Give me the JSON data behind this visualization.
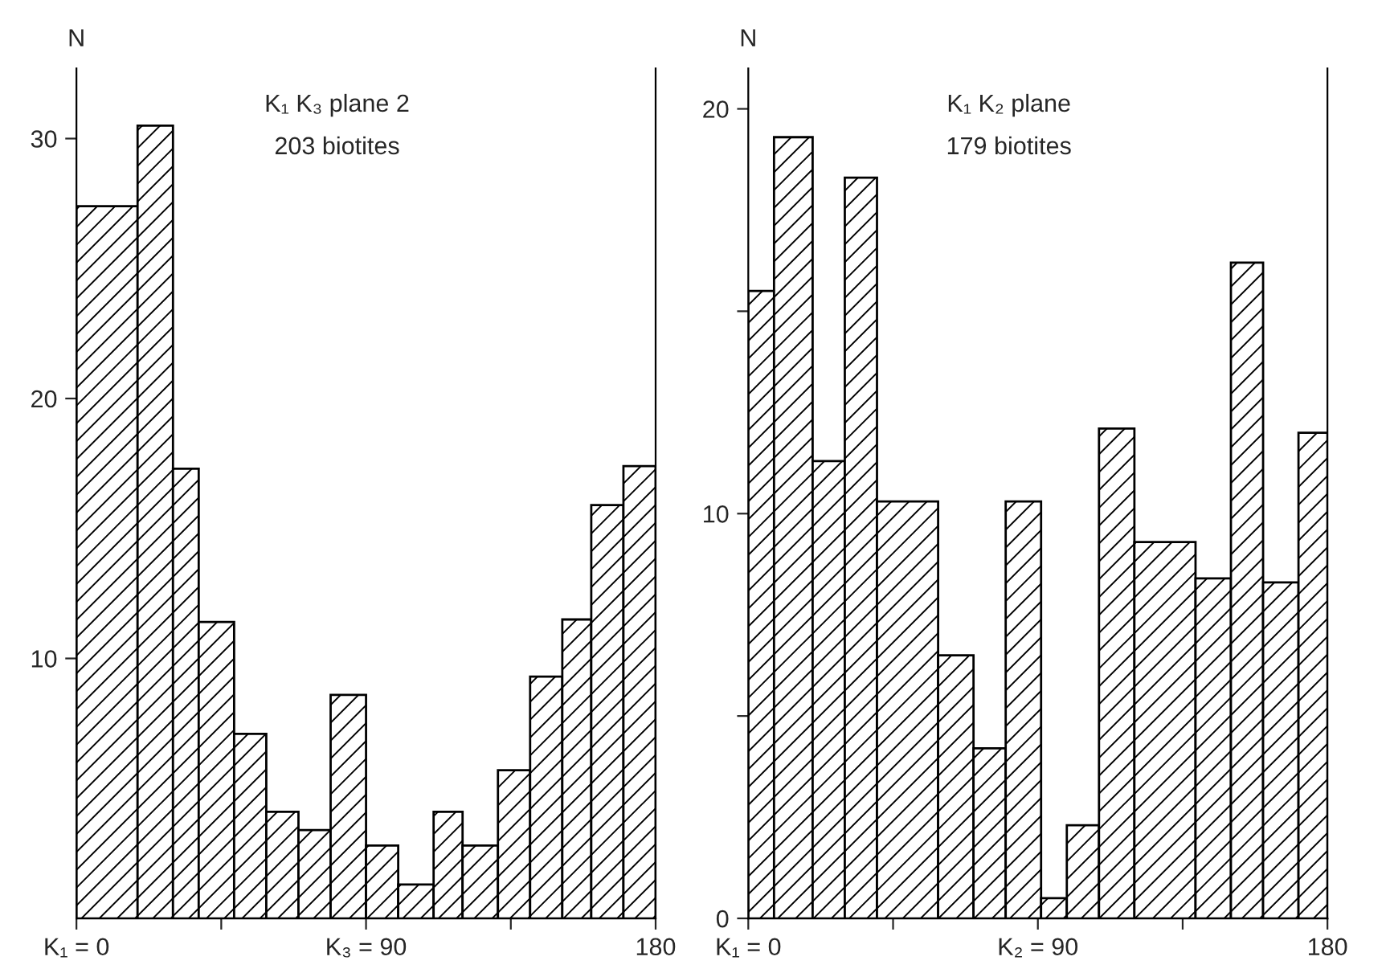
{
  "chart_data": [
    {
      "type": "histogram",
      "title": "K₁ K₃ plane 2",
      "subtitle": "203 biotites",
      "ylabel": "N",
      "color": "#000000",
      "bins": [
        0,
        19,
        30,
        38,
        49,
        59,
        69,
        79,
        90,
        100,
        111,
        120,
        131,
        141,
        151,
        160,
        170,
        180
      ],
      "values": [
        27.4,
        30.5,
        17.3,
        11.4,
        7.1,
        4.1,
        3.4,
        8.6,
        2.8,
        1.3,
        4.1,
        2.8,
        5.7,
        9.3,
        11.5,
        15.9,
        17.4
      ],
      "xlim": [
        0,
        180
      ],
      "xticks": [
        {
          "value": 0,
          "label": "K₁ = 0"
        },
        {
          "value": 45,
          "label": null
        },
        {
          "value": 90,
          "label": "K₃ = 90"
        },
        {
          "value": 135,
          "label": null
        },
        180
      ],
      "ylim": [
        0,
        32.7
      ],
      "yticks": [
        10,
        20,
        30
      ],
      "grid": false
    },
    {
      "type": "histogram",
      "title": "K₁ K₂ plane",
      "subtitle": "179 biotites",
      "ylabel": "N",
      "color": "#000000",
      "bins": [
        0,
        8,
        20,
        30,
        40,
        59,
        70,
        80,
        91,
        99,
        109,
        120,
        139,
        150,
        160,
        171,
        180
      ],
      "values": [
        15.5,
        19.3,
        11.3,
        18.3,
        10.3,
        6.5,
        4.2,
        10.3,
        0.5,
        2.3,
        12.1,
        9.3,
        8.4,
        16.2,
        8.3,
        12.0
      ],
      "xlim": [
        0,
        180
      ],
      "xticks": [
        {
          "value": 0,
          "label": "K₁ = 0"
        },
        {
          "value": 45,
          "label": null
        },
        {
          "value": 90,
          "label": "K₂ = 90"
        },
        {
          "value": 135,
          "label": null
        },
        180
      ],
      "ylim": [
        0,
        21
      ],
      "yticks": [
        0,
        {
          "value": 5,
          "label": null
        },
        10,
        {
          "value": 15,
          "label": null
        },
        20
      ],
      "grid": false
    }
  ]
}
